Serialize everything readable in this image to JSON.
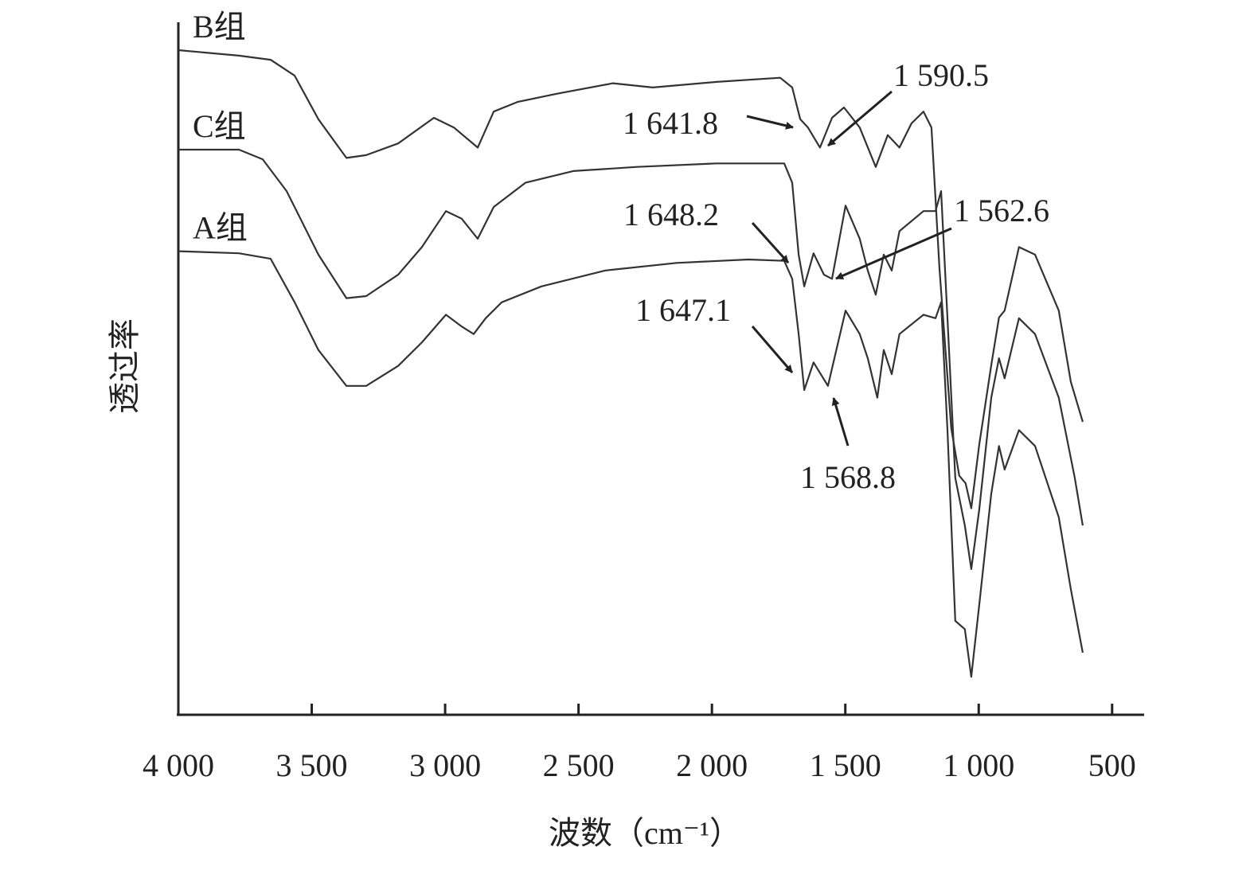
{
  "chart_data": {
    "type": "line",
    "xlabel": "波数（cm⁻¹）",
    "ylabel": "透过率",
    "xlim": [
      4000,
      380
    ],
    "ylim": [
      0,
      100
    ],
    "xticks": [
      {
        "value": 4000,
        "label": "4 000"
      },
      {
        "value": 3500,
        "label": "3 500"
      },
      {
        "value": 3000,
        "label": "3 000"
      },
      {
        "value": 2500,
        "label": "2 500"
      },
      {
        "value": 2000,
        "label": "2 000"
      },
      {
        "value": 1500,
        "label": "1 500"
      },
      {
        "value": 1000,
        "label": "1 000"
      },
      500
    ],
    "series": [
      {
        "name": "B组",
        "color": "#333333",
        "x": [
          4000,
          3773,
          3654,
          3564,
          3475,
          3370,
          3296,
          3176,
          3042,
          2967,
          2878,
          2818,
          2729,
          2580,
          2371,
          2222,
          1983,
          1744,
          1699,
          1669,
          1640,
          1595,
          1550,
          1505,
          1446,
          1386,
          1341,
          1297,
          1252,
          1207,
          1177,
          1147,
          1103,
          1073,
          1049,
          1028,
          998,
          953,
          924,
          903,
          849,
          789,
          700,
          655,
          610
        ],
        "values": [
          96.2,
          95.4,
          94.8,
          92.5,
          86.2,
          80.6,
          81.0,
          82.7,
          86.4,
          85.0,
          82.1,
          87.3,
          88.7,
          89.9,
          91.4,
          90.8,
          91.6,
          92.2,
          90.8,
          86.2,
          85.0,
          82.1,
          86.4,
          87.9,
          85.0,
          79.3,
          83.9,
          82.1,
          85.6,
          87.3,
          85.0,
          64.5,
          41.5,
          34.6,
          33.5,
          29.9,
          39.1,
          50.6,
          57.5,
          58.5,
          67.7,
          66.6,
          58.5,
          48.2,
          42.4
        ]
      },
      {
        "name": "C组",
        "color": "#333333",
        "x": [
          4000,
          3773,
          3684,
          3594,
          3475,
          3370,
          3296,
          3176,
          3087,
          2997,
          2938,
          2878,
          2818,
          2699,
          2520,
          2281,
          1983,
          1729,
          1699,
          1675,
          1654,
          1619,
          1580,
          1550,
          1499,
          1446,
          1416,
          1386,
          1356,
          1326,
          1297,
          1207,
          1162,
          1141,
          1117,
          1088,
          1052,
          1028,
          998,
          953,
          924,
          903,
          849,
          789,
          700,
          640,
          610
        ],
        "values": [
          81.8,
          81.8,
          80.4,
          75.8,
          66.6,
          60.3,
          60.6,
          63.7,
          67.7,
          72.9,
          71.8,
          68.9,
          73.5,
          77.0,
          78.7,
          79.3,
          79.8,
          79.8,
          77.0,
          66.6,
          62.0,
          66.8,
          63.7,
          63.1,
          73.7,
          68.9,
          64.3,
          60.8,
          66.6,
          64.3,
          70.0,
          72.9,
          72.9,
          75.8,
          57.4,
          34.3,
          27.4,
          21.1,
          29.7,
          45.9,
          51.6,
          48.7,
          57.4,
          55.1,
          45.9,
          34.3,
          27.4
        ]
      },
      {
        "name": "A组",
        "color": "#333333",
        "x": [
          4000,
          3773,
          3654,
          3564,
          3475,
          3370,
          3296,
          3176,
          3087,
          2997,
          2938,
          2893,
          2848,
          2788,
          2639,
          2401,
          2132,
          1863,
          1729,
          1699,
          1675,
          1654,
          1619,
          1565,
          1499,
          1446,
          1416,
          1380,
          1356,
          1326,
          1297,
          1207,
          1162,
          1141,
          1117,
          1088,
          1052,
          1028,
          998,
          953,
          924,
          903,
          849,
          789,
          700,
          655,
          610
        ],
        "values": [
          67.1,
          66.8,
          66.0,
          59.7,
          52.8,
          47.6,
          47.6,
          50.5,
          53.9,
          57.9,
          56.2,
          55.1,
          57.4,
          59.7,
          62.0,
          64.3,
          65.4,
          65.9,
          65.7,
          63.1,
          55.1,
          47.0,
          51.0,
          47.6,
          58.5,
          55.1,
          51.6,
          45.9,
          52.8,
          49.3,
          55.1,
          57.9,
          57.4,
          59.7,
          41.2,
          13.6,
          12.4,
          5.5,
          15.9,
          32.0,
          38.9,
          35.5,
          41.2,
          38.9,
          28.6,
          18.2,
          9.0
        ]
      }
    ],
    "annotations": [
      "1 641.8",
      "1 590.5",
      "1 648.2",
      "1 562.6",
      "1 647.1",
      "1 568.8"
    ]
  }
}
